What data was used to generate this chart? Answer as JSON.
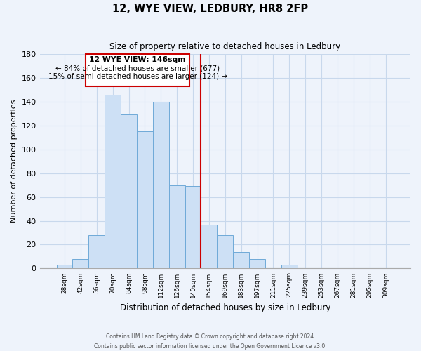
{
  "title": "12, WYE VIEW, LEDBURY, HR8 2FP",
  "subtitle": "Size of property relative to detached houses in Ledbury",
  "xlabel": "Distribution of detached houses by size in Ledbury",
  "ylabel": "Number of detached properties",
  "bar_labels": [
    "28sqm",
    "42sqm",
    "56sqm",
    "70sqm",
    "84sqm",
    "98sqm",
    "112sqm",
    "126sqm",
    "140sqm",
    "154sqm",
    "169sqm",
    "183sqm",
    "197sqm",
    "211sqm",
    "225sqm",
    "239sqm",
    "253sqm",
    "267sqm",
    "281sqm",
    "295sqm",
    "309sqm"
  ],
  "bar_values": [
    3,
    8,
    28,
    146,
    129,
    115,
    140,
    70,
    69,
    37,
    28,
    14,
    8,
    0,
    3,
    0,
    0,
    0,
    0,
    0,
    0
  ],
  "bar_color": "#cde0f5",
  "bar_edge_color": "#6faad8",
  "vline_x": 8.5,
  "vline_color": "#cc0000",
  "annotation_title": "12 WYE VIEW: 146sqm",
  "annotation_line1": "← 84% of detached houses are smaller (677)",
  "annotation_line2": "15% of semi-detached houses are larger (124) →",
  "annotation_box_color": "#ffffff",
  "annotation_box_edge": "#cc0000",
  "ylim": [
    0,
    180
  ],
  "yticks": [
    0,
    20,
    40,
    60,
    80,
    100,
    120,
    140,
    160,
    180
  ],
  "footer_line1": "Contains HM Land Registry data © Crown copyright and database right 2024.",
  "footer_line2": "Contains public sector information licensed under the Open Government Licence v3.0.",
  "background_color": "#eef3fb",
  "grid_color": "#c8d8ec"
}
